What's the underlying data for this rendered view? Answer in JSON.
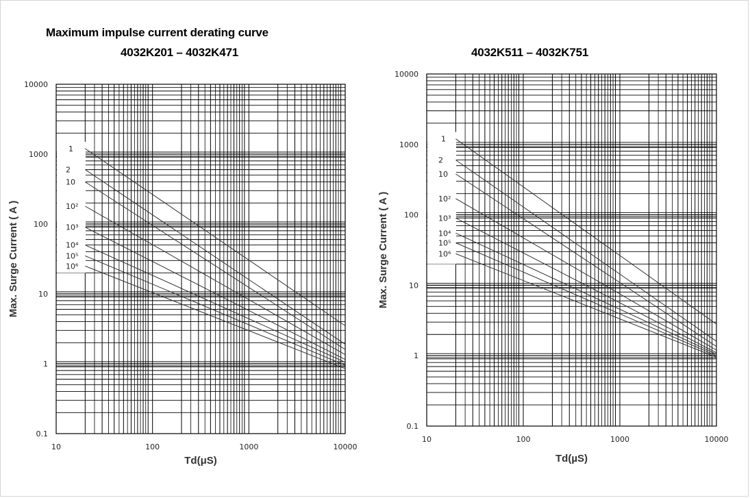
{
  "page": {
    "title": "Maximum impulse current derating curve"
  },
  "chart_data": [
    {
      "type": "line",
      "subtitle": "4032K201 – 4032K471",
      "xscale": "log",
      "yscale": "log",
      "xlim": [
        10,
        10000
      ],
      "ylim": [
        0.1,
        10000
      ],
      "xticks": [
        "10",
        "100",
        "1000",
        "10000"
      ],
      "yticks": [
        "0.1",
        "1",
        "10",
        "100",
        "1000",
        "10000"
      ],
      "xlabel": "Td(μS)",
      "ylabel": "Max. Surge Current ( A )",
      "grid": true,
      "series": [
        {
          "name": "1",
          "label": "1",
          "x": [
            20,
            10000
          ],
          "y": [
            1200,
            3.5
          ]
        },
        {
          "name": "2",
          "label": "2",
          "x": [
            20,
            10000
          ],
          "y": [
            600,
            1.9
          ]
        },
        {
          "name": "10",
          "label": "10",
          "x": [
            20,
            10000
          ],
          "y": [
            400,
            1.6
          ]
        },
        {
          "name": "10^2",
          "label": "10²",
          "x": [
            20,
            10000
          ],
          "y": [
            180,
            1.35
          ]
        },
        {
          "name": "10^3",
          "label": "10³",
          "x": [
            20,
            10000
          ],
          "y": [
            90,
            1.15
          ]
        },
        {
          "name": "10^4",
          "label": "10⁴",
          "x": [
            20,
            10000
          ],
          "y": [
            50,
            1.05
          ]
        },
        {
          "name": "10^5",
          "label": "10⁵",
          "x": [
            20,
            10000
          ],
          "y": [
            35,
            0.95
          ]
        },
        {
          "name": "10^6",
          "label": "10⁶",
          "x": [
            20,
            10000
          ],
          "y": [
            25,
            0.85
          ]
        }
      ]
    },
    {
      "type": "line",
      "subtitle": "4032K511 – 4032K751",
      "xscale": "log",
      "yscale": "log",
      "xlim": [
        10,
        10000
      ],
      "ylim": [
        0.1,
        10000
      ],
      "xticks": [
        "10",
        "100",
        "1000",
        "10000"
      ],
      "yticks": [
        "0.1",
        "1",
        "10",
        "100",
        "1000",
        "10000"
      ],
      "xlabel": "Td(µS)",
      "ylabel": "Max. Surge Current ( A )",
      "grid": true,
      "series": [
        {
          "name": "1",
          "label": "1",
          "x": [
            20,
            10000
          ],
          "y": [
            1200,
            2.8
          ]
        },
        {
          "name": "2",
          "label": "2",
          "x": [
            20,
            10000
          ],
          "y": [
            600,
            1.6
          ]
        },
        {
          "name": "10",
          "label": "10",
          "x": [
            20,
            10000
          ],
          "y": [
            380,
            1.35
          ]
        },
        {
          "name": "10^2",
          "label": "10²",
          "x": [
            20,
            10000
          ],
          "y": [
            170,
            1.2
          ]
        },
        {
          "name": "10^3",
          "label": "10³",
          "x": [
            20,
            10000
          ],
          "y": [
            90,
            1.1
          ]
        },
        {
          "name": "10^4",
          "label": "10⁴",
          "x": [
            20,
            10000
          ],
          "y": [
            55,
            1.05
          ]
        },
        {
          "name": "10^5",
          "label": "10⁵",
          "x": [
            20,
            10000
          ],
          "y": [
            40,
            1.0
          ]
        },
        {
          "name": "10^6",
          "label": "10⁶",
          "x": [
            20,
            10000
          ],
          "y": [
            28,
            0.95
          ]
        }
      ]
    }
  ]
}
